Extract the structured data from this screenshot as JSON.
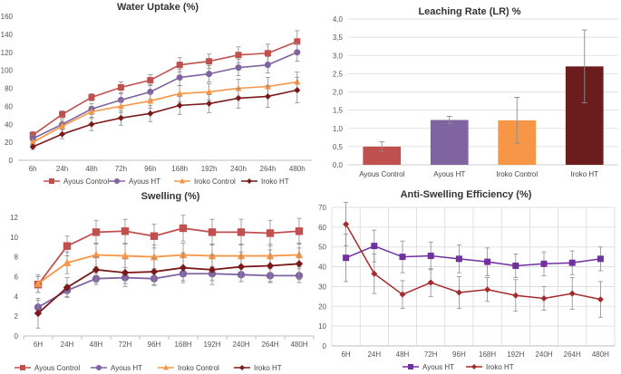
{
  "chart_data": [
    {
      "id": "water",
      "type": "line",
      "title": "Water Uptake (%)",
      "categories": [
        "6h",
        "24h",
        "48h",
        "72h",
        "96h",
        "168h",
        "192h",
        "240h",
        "264h",
        "480h"
      ],
      "ylim": [
        0,
        160
      ],
      "yticks": [
        "0",
        "20",
        "40",
        "60",
        "80",
        "100",
        "120",
        "140",
        "160"
      ],
      "grid": false,
      "legend": "bottom",
      "series": [
        {
          "name": "Ayous Control",
          "color": "#C0504D",
          "marker": "square",
          "values": [
            28,
            51,
            70,
            81,
            89,
            106,
            110,
            117,
            119,
            132
          ],
          "errors": [
            4,
            4,
            4,
            6,
            6,
            8,
            8,
            9,
            10,
            12
          ]
        },
        {
          "name": "Ayous HT",
          "color": "#8064A2",
          "marker": "circle",
          "values": [
            24,
            40,
            57,
            67,
            76,
            92,
            96,
            103,
            106,
            120
          ],
          "errors": [
            4,
            5,
            6,
            7,
            8,
            9,
            9,
            9,
            9,
            10
          ]
        },
        {
          "name": "Iroko Control",
          "color": "#F79646",
          "marker": "triangle",
          "values": [
            20,
            38,
            54,
            60,
            66,
            74,
            76,
            80,
            82,
            87
          ],
          "errors": [
            3,
            4,
            6,
            7,
            8,
            9,
            9,
            10,
            10,
            11
          ]
        },
        {
          "name": "Iroko HT",
          "color": "#7B1A1A",
          "marker": "diamond",
          "values": [
            15,
            29,
            40,
            47,
            52,
            61,
            63,
            69,
            71,
            78
          ],
          "errors": [
            3,
            5,
            7,
            8,
            9,
            10,
            10,
            11,
            12,
            14
          ]
        }
      ]
    },
    {
      "id": "leaching",
      "type": "bar",
      "title": "Leaching Rate (LR) %",
      "categories": [
        "Ayous Control",
        "Ayous HT",
        "Iroko Control",
        "Iroko HT"
      ],
      "values": [
        0.5,
        1.23,
        1.22,
        2.7
      ],
      "errors": [
        0.13,
        0.1,
        0.63,
        1.0
      ],
      "colors": [
        "#C0504D",
        "#8064A2",
        "#F79646",
        "#6B1D1D"
      ],
      "ylim": [
        0,
        4
      ],
      "yticks": [
        "0,0",
        "0,5",
        "1,0",
        "1,5",
        "2,0",
        "2,5",
        "3,0",
        "3,5",
        "4,0"
      ],
      "grid": true
    },
    {
      "id": "swelling",
      "type": "line",
      "title": "Swelling (%)",
      "categories": [
        "6H",
        "24H",
        "48H",
        "72H",
        "96H",
        "168H",
        "192H",
        "240H",
        "264H",
        "480H"
      ],
      "ylim": [
        0,
        12
      ],
      "yticks": [
        "0",
        "2",
        "4",
        "6",
        "8",
        "10",
        "12"
      ],
      "grid": false,
      "legend": "bottom",
      "series": [
        {
          "name": "Ayous Control",
          "color": "#C0504D",
          "marker": "square",
          "values": [
            5.2,
            9.1,
            10.5,
            10.6,
            10.1,
            10.9,
            10.5,
            10.5,
            10.4,
            10.6
          ],
          "errors": [
            0.8,
            1.0,
            1.2,
            1.2,
            1.2,
            1.3,
            1.3,
            1.3,
            1.3,
            1.3
          ]
        },
        {
          "name": "Ayous  HT",
          "color": "#8064A2",
          "marker": "circle",
          "values": [
            2.9,
            4.6,
            5.8,
            5.9,
            5.8,
            6.3,
            6.3,
            6.2,
            6.1,
            6.1
          ],
          "errors": [
            0.7,
            0.6,
            0.6,
            0.6,
            0.6,
            0.7,
            0.7,
            0.7,
            0.7,
            0.7
          ]
        },
        {
          "name": "Iroko Control",
          "color": "#F79646",
          "marker": "triangle",
          "values": [
            5.3,
            7.4,
            8.2,
            8.1,
            8.0,
            8.2,
            8.1,
            8.1,
            8.1,
            8.2
          ],
          "errors": [
            0.9,
            1.1,
            1.2,
            1.2,
            1.2,
            1.2,
            1.2,
            1.2,
            1.2,
            1.2
          ]
        },
        {
          "name": "Iroko  HT",
          "color": "#7B1A1A",
          "marker": "diamond",
          "values": [
            2.3,
            4.9,
            6.7,
            6.4,
            6.5,
            6.9,
            6.7,
            7.0,
            7.1,
            7.3
          ],
          "errors": [
            1.5,
            1.0,
            1.3,
            1.4,
            1.4,
            1.5,
            1.5,
            1.5,
            1.6,
            1.6
          ]
        }
      ]
    },
    {
      "id": "ase",
      "type": "line",
      "title": "Anti-Swelling Efficiency (%)",
      "categories": [
        "6H",
        "24H",
        "48H",
        "72H",
        "96H",
        "168H",
        "192H",
        "240H",
        "264H",
        "480H"
      ],
      "ylim": [
        0,
        70
      ],
      "yticks": [
        "0",
        "10",
        "20",
        "30",
        "40",
        "50",
        "60",
        "70"
      ],
      "grid": true,
      "legend": "bottom",
      "series": [
        {
          "name": "Ayous  HT",
          "color": "#7030A0",
          "marker": "square",
          "values": [
            44.5,
            50.5,
            45.0,
            45.5,
            44.0,
            42.5,
            40.5,
            41.5,
            42.0,
            44.0
          ],
          "errors": [
            12,
            8,
            8,
            7,
            7,
            7,
            6,
            6,
            6,
            6
          ]
        },
        {
          "name": "Iroko  HT",
          "color": "#A52A2A",
          "marker": "diamond",
          "values": [
            61.5,
            36.5,
            26.0,
            32.0,
            27.0,
            28.5,
            25.5,
            24.0,
            26.5,
            23.5
          ],
          "errors": [
            11,
            10,
            7,
            7,
            8,
            6,
            8,
            6,
            8,
            9
          ]
        }
      ]
    }
  ]
}
